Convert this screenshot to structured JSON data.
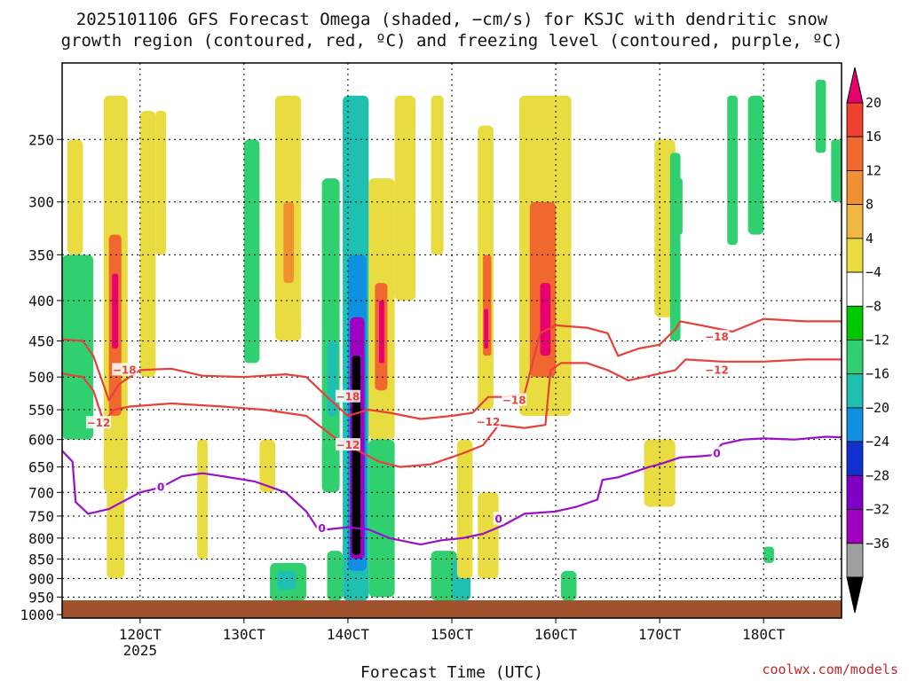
{
  "chart_data": {
    "type": "heatmap",
    "title_lines": [
      "2025101106 GFS Forecast Omega (shaded, −cm/s) for KSJC with dendritic snow",
      "growth region (contoured, red, ºC) and freezing level (contoured, purple, ºC)"
    ],
    "xlabel": "Forecast Time (UTC)",
    "x_ticks": [
      {
        "h": 120,
        "label": "120CT",
        "sub": "2025"
      },
      {
        "h": 130,
        "label": "130CT",
        "sub": ""
      },
      {
        "h": 140,
        "label": "140CT",
        "sub": ""
      },
      {
        "h": 150,
        "label": "150CT",
        "sub": ""
      },
      {
        "h": 160,
        "label": "160CT",
        "sub": ""
      },
      {
        "h": 170,
        "label": "170CT",
        "sub": ""
      },
      {
        "h": 180,
        "label": "180CT",
        "sub": ""
      }
    ],
    "xlim": [
      112.5,
      187.5
    ],
    "y_ticks": [
      250,
      300,
      350,
      400,
      450,
      500,
      550,
      600,
      650,
      700,
      750,
      800,
      850,
      900,
      950,
      1000
    ],
    "ylim": [
      200,
      1010
    ],
    "y_scale": "log-pressure",
    "colorbar": {
      "labels": [
        "20",
        "16",
        "12",
        "8",
        "4",
        "−4",
        "−8",
        "−12",
        "−16",
        "−20",
        "−24",
        "−28",
        "−32",
        "−36"
      ],
      "colors": [
        "#e8006e",
        "#f04030",
        "#f06830",
        "#f09030",
        "#f0b840",
        "#e8dc40",
        "#ffffff",
        "#00c800",
        "#30d070",
        "#20c0b0",
        "#1090e0",
        "#1030d0",
        "#8000c8",
        "#a000c0",
        "#a0a0a0",
        "#000000"
      ]
    },
    "omega_cells": [
      {
        "t0": 112.5,
        "t1": 115.5,
        "p0": 350,
        "p1": 600,
        "v": -10
      },
      {
        "t0": 113,
        "t1": 114.5,
        "p0": 250,
        "p1": 350,
        "v": 6
      },
      {
        "t0": 116.5,
        "t1": 118.8,
        "p0": 220,
        "p1": 700,
        "v": 6
      },
      {
        "t0": 117,
        "t1": 118.2,
        "p0": 330,
        "p1": 560,
        "v": 12
      },
      {
        "t0": 117.3,
        "t1": 117.9,
        "p0": 370,
        "p1": 460,
        "v": 18
      },
      {
        "t0": 116.8,
        "t1": 118.5,
        "p0": 600,
        "p1": 900,
        "v": 6
      },
      {
        "t0": 120,
        "t1": 121.5,
        "p0": 230,
        "p1": 500,
        "v": 6
      },
      {
        "t0": 121.5,
        "t1": 122.5,
        "p0": 230,
        "p1": 350,
        "v": 6
      },
      {
        "t0": 125.5,
        "t1": 126.5,
        "p0": 600,
        "p1": 850,
        "v": 6
      },
      {
        "t0": 130,
        "t1": 131.5,
        "p0": 250,
        "p1": 480,
        "v": -9
      },
      {
        "t0": 133,
        "t1": 135.5,
        "p0": 220,
        "p1": 450,
        "v": 6
      },
      {
        "t0": 133.8,
        "t1": 134.8,
        "p0": 300,
        "p1": 380,
        "v": 10
      },
      {
        "t0": 131.5,
        "t1": 133,
        "p0": 600,
        "p1": 700,
        "v": 6
      },
      {
        "t0": 132.5,
        "t1": 136,
        "p0": 860,
        "p1": 960,
        "v": -9
      },
      {
        "t0": 133.2,
        "t1": 135,
        "p0": 880,
        "p1": 930,
        "v": -14
      },
      {
        "t0": 137.5,
        "t1": 139.2,
        "p0": 280,
        "p1": 700,
        "v": -9
      },
      {
        "t0": 138,
        "t1": 139,
        "p0": 450,
        "p1": 560,
        "v": -14
      },
      {
        "t0": 138,
        "t1": 139.5,
        "p0": 830,
        "p1": 960,
        "v": -9
      },
      {
        "t0": 139.5,
        "t1": 142,
        "p0": 220,
        "p1": 960,
        "v": -12
      },
      {
        "t0": 140,
        "t1": 141.8,
        "p0": 350,
        "p1": 880,
        "v": -18
      },
      {
        "t0": 140.2,
        "t1": 141.6,
        "p0": 420,
        "p1": 850,
        "v": -30
      },
      {
        "t0": 140.4,
        "t1": 141.2,
        "p0": 470,
        "p1": 840,
        "v": -40
      },
      {
        "t0": 142,
        "t1": 144.5,
        "p0": 280,
        "p1": 600,
        "v": 6
      },
      {
        "t0": 142.6,
        "t1": 143.8,
        "p0": 380,
        "p1": 520,
        "v": 12
      },
      {
        "t0": 143,
        "t1": 143.5,
        "p0": 400,
        "p1": 480,
        "v": 18
      },
      {
        "t0": 142,
        "t1": 144.5,
        "p0": 600,
        "p1": 950,
        "v": -9
      },
      {
        "t0": 144.5,
        "t1": 146.5,
        "p0": 220,
        "p1": 400,
        "v": 6
      },
      {
        "t0": 148,
        "t1": 149.2,
        "p0": 220,
        "p1": 350,
        "v": 6
      },
      {
        "t0": 148,
        "t1": 150.5,
        "p0": 830,
        "p1": 960,
        "v": -9
      },
      {
        "t0": 150,
        "t1": 151.8,
        "p0": 850,
        "p1": 960,
        "v": -13
      },
      {
        "t0": 150.5,
        "t1": 152,
        "p0": 600,
        "p1": 900,
        "v": 6
      },
      {
        "t0": 152.5,
        "t1": 154,
        "p0": 240,
        "p1": 550,
        "v": 6
      },
      {
        "t0": 153,
        "t1": 153.8,
        "p0": 350,
        "p1": 470,
        "v": 12
      },
      {
        "t0": 153.1,
        "t1": 153.5,
        "p0": 410,
        "p1": 460,
        "v": 18
      },
      {
        "t0": 152.5,
        "t1": 154.5,
        "p0": 700,
        "p1": 900,
        "v": 6
      },
      {
        "t0": 156.5,
        "t1": 161.5,
        "p0": 220,
        "p1": 560,
        "v": 6
      },
      {
        "t0": 157.5,
        "t1": 160,
        "p0": 300,
        "p1": 500,
        "v": 12
      },
      {
        "t0": 158.5,
        "t1": 159.5,
        "p0": 380,
        "p1": 470,
        "v": 16
      },
      {
        "t0": 160.5,
        "t1": 162,
        "p0": 880,
        "p1": 960,
        "v": -9
      },
      {
        "t0": 168.5,
        "t1": 171.5,
        "p0": 600,
        "p1": 730,
        "v": 6
      },
      {
        "t0": 169.5,
        "t1": 171.5,
        "p0": 250,
        "p1": 420,
        "v": 6
      },
      {
        "t0": 171,
        "t1": 172,
        "p0": 260,
        "p1": 450,
        "v": -9
      },
      {
        "t0": 171.4,
        "t1": 172.2,
        "p0": 280,
        "p1": 330,
        "v": -9
      },
      {
        "t0": 176.5,
        "t1": 177.5,
        "p0": 220,
        "p1": 340,
        "v": -9
      },
      {
        "t0": 178.5,
        "t1": 180,
        "p0": 220,
        "p1": 330,
        "v": -9
      },
      {
        "t0": 180,
        "t1": 181,
        "p0": 820,
        "p1": 860,
        "v": -9
      },
      {
        "t0": 185,
        "t1": 186,
        "p0": 210,
        "p1": 260,
        "v": -9
      },
      {
        "t0": 186.5,
        "t1": 187.5,
        "p0": 250,
        "p1": 300,
        "v": -9
      }
    ],
    "contours": [
      {
        "name": "dgz-minus-18",
        "color": "#e8403a",
        "label": "−18",
        "label_at": [
          {
            "t": 118.5,
            "p": 490
          },
          {
            "t": 140,
            "p": 530
          },
          {
            "t": 156,
            "p": 535
          },
          {
            "t": 175.5,
            "p": 445
          }
        ],
        "points": [
          [
            112.5,
            448
          ],
          [
            114.5,
            450
          ],
          [
            115.5,
            470
          ],
          [
            117,
            535
          ],
          [
            118,
            510
          ],
          [
            120,
            490
          ],
          [
            123,
            488
          ],
          [
            126,
            498
          ],
          [
            130,
            500
          ],
          [
            134,
            496
          ],
          [
            136,
            500
          ],
          [
            138,
            530
          ],
          [
            140,
            560
          ],
          [
            142,
            550
          ],
          [
            144,
            555
          ],
          [
            147,
            565
          ],
          [
            150,
            560
          ],
          [
            152,
            555
          ],
          [
            153.5,
            530
          ],
          [
            155,
            530
          ],
          [
            157,
            525
          ],
          [
            158.5,
            440
          ],
          [
            160,
            430
          ],
          [
            163,
            433
          ],
          [
            165,
            440
          ],
          [
            166,
            470
          ],
          [
            168,
            460
          ],
          [
            170,
            455
          ],
          [
            171.5,
            435
          ],
          [
            172,
            425
          ],
          [
            174,
            430
          ],
          [
            177,
            438
          ],
          [
            180,
            422
          ],
          [
            184,
            425
          ],
          [
            187.5,
            425
          ]
        ]
      },
      {
        "name": "dgz-minus-12",
        "color": "#e8403a",
        "label": "−12",
        "label_at": [
          {
            "t": 116,
            "p": 572
          },
          {
            "t": 140,
            "p": 610
          },
          {
            "t": 153.5,
            "p": 570
          },
          {
            "t": 175.5,
            "p": 490
          }
        ],
        "points": [
          [
            112.5,
            495
          ],
          [
            114.5,
            500
          ],
          [
            115.5,
            520
          ],
          [
            116.5,
            570
          ],
          [
            117.5,
            550
          ],
          [
            119,
            545
          ],
          [
            123,
            540
          ],
          [
            128,
            545
          ],
          [
            132,
            550
          ],
          [
            136,
            560
          ],
          [
            139,
            600
          ],
          [
            141,
            620
          ],
          [
            143,
            640
          ],
          [
            145,
            650
          ],
          [
            148,
            645
          ],
          [
            151,
            625
          ],
          [
            153,
            610
          ],
          [
            154.5,
            575
          ],
          [
            157,
            580
          ],
          [
            159,
            575
          ],
          [
            159.5,
            490
          ],
          [
            160.5,
            480
          ],
          [
            163,
            480
          ],
          [
            165,
            490
          ],
          [
            167,
            505
          ],
          [
            170,
            495
          ],
          [
            171.5,
            490
          ],
          [
            172.5,
            475
          ],
          [
            176,
            478
          ],
          [
            180,
            478
          ],
          [
            184,
            475
          ],
          [
            187.5,
            475
          ]
        ]
      },
      {
        "name": "freezing-level-0",
        "color": "#9a10c8",
        "label": "0",
        "label_at": [
          {
            "t": 122,
            "p": 690
          },
          {
            "t": 137.5,
            "p": 778
          },
          {
            "t": 154.5,
            "p": 757
          },
          {
            "t": 175.5,
            "p": 625
          }
        ],
        "points": [
          [
            112.5,
            620
          ],
          [
            113.5,
            640
          ],
          [
            113.8,
            720
          ],
          [
            115,
            745
          ],
          [
            117,
            735
          ],
          [
            120,
            700
          ],
          [
            122,
            690
          ],
          [
            124,
            668
          ],
          [
            126,
            662
          ],
          [
            128,
            668
          ],
          [
            131,
            678
          ],
          [
            134,
            700
          ],
          [
            136,
            740
          ],
          [
            137,
            775
          ],
          [
            138,
            780
          ],
          [
            140,
            775
          ],
          [
            142,
            780
          ],
          [
            144,
            800
          ],
          [
            147,
            815
          ],
          [
            149,
            805
          ],
          [
            151,
            800
          ],
          [
            153,
            790
          ],
          [
            155,
            770
          ],
          [
            157,
            745
          ],
          [
            160,
            740
          ],
          [
            162,
            730
          ],
          [
            164,
            715
          ],
          [
            164.5,
            675
          ],
          [
            166,
            670
          ],
          [
            169,
            650
          ],
          [
            170,
            645
          ],
          [
            172,
            632
          ],
          [
            174,
            630
          ],
          [
            175,
            628
          ],
          [
            176,
            608
          ],
          [
            178,
            600
          ],
          [
            180,
            598
          ],
          [
            183,
            600
          ],
          [
            186,
            595
          ],
          [
            187.5,
            596
          ]
        ]
      }
    ]
  },
  "credit": "coolwx.com/models"
}
